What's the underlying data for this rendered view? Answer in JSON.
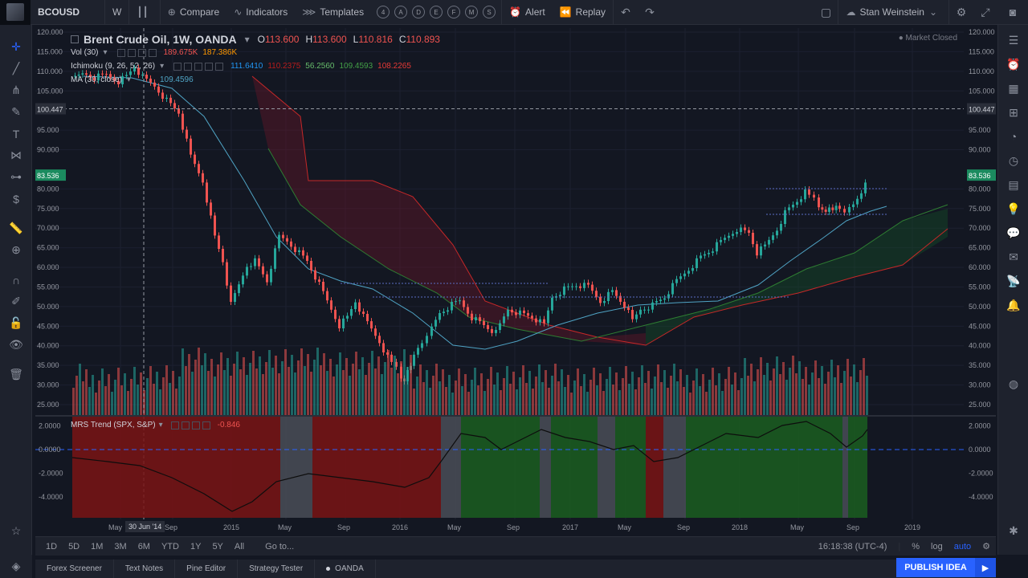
{
  "topbar": {
    "symbol": "BCOUSD",
    "interval": "W",
    "compare": "Compare",
    "indicators": "Indicators",
    "templates": "Templates",
    "alert": "Alert",
    "replay": "Replay",
    "user": "Stan Weinstein",
    "layout_keys": [
      "4",
      "A",
      "D",
      "E",
      "F",
      "M",
      "S"
    ]
  },
  "legend": {
    "title": "Brent Crude Oil, 1W, OANDA",
    "o_lab": "O",
    "o": "113.600",
    "h_lab": "H",
    "h": "113.600",
    "l_lab": "L",
    "l": "110.816",
    "c_lab": "C",
    "c": "110.893",
    "vol_label": "Vol (30)",
    "vol_1": "189.675K",
    "vol_2": "187.386K",
    "ichimoku_label": "Ichimoku (9, 26, 52, 26)",
    "ichi_1": "111.6410",
    "ichi_2": "110.2375",
    "ichi_3": "56.2560",
    "ichi_4": "109.4593",
    "ichi_5": "108.2265",
    "ma_label": "MA (30, close)",
    "ma_val": "109.4596",
    "market_status": "Market Closed",
    "mrs_label": "MRS Trend (SPX, S&P)",
    "mrs_val": "-0.846"
  },
  "price_axis": {
    "labels": [
      "120.000",
      "115.000",
      "110.000",
      "105.000",
      "100.447",
      "95.000",
      "90.000",
      "83.536",
      "80.000",
      "75.000",
      "70.000",
      "65.000",
      "60.000",
      "55.000",
      "50.000",
      "45.000",
      "40.000",
      "35.000",
      "30.000",
      "25.000"
    ],
    "current_price": "83.536",
    "crosshair_price": "100.447"
  },
  "mrs_axis": {
    "labels": [
      "2.0000",
      "0.0000",
      "-2.0000",
      "-4.0000"
    ]
  },
  "time_axis": {
    "labels": [
      "May",
      "Sep",
      "2015",
      "May",
      "Sep",
      "2016",
      "May",
      "Sep",
      "2017",
      "May",
      "Sep",
      "2018",
      "May",
      "Sep",
      "2019"
    ],
    "crosshair_date": "30 Jun '14"
  },
  "rangebar": {
    "ranges": [
      "1D",
      "5D",
      "1M",
      "3M",
      "6M",
      "YTD",
      "1Y",
      "5Y",
      "All"
    ],
    "goto": "Go to...",
    "clock": "16:18:38 (UTC-4)",
    "pct": "%",
    "log": "log",
    "auto": "auto"
  },
  "footer": {
    "tabs": [
      "Forex Screener",
      "Text Notes",
      "Pine Editor",
      "Strategy Tester",
      "OANDA"
    ],
    "publish": "PUBLISH IDEA"
  },
  "colors": {
    "up": "#26a69a",
    "down": "#ef5350",
    "background": "#131722",
    "accent": "#2962ff"
  },
  "icons": {
    "left_toolbar": [
      "crosshair-icon",
      "trend-line-icon",
      "pitchfork-icon",
      "brush-icon",
      "text-icon",
      "pattern-icon",
      "prediction-icon",
      "dollar-icon",
      "ruler-icon",
      "zoom-icon",
      "magnet-icon",
      "lock-drawing-icon",
      "lock-icon",
      "eye-icon",
      "trash-icon"
    ],
    "right_sidebar": [
      "watchlist-icon",
      "alarm-icon",
      "calendar-icon",
      "data-window-icon",
      "hotlist-icon",
      "clock-icon",
      "calculator-icon",
      "idea-icon",
      "chat-icon",
      "message-icon",
      "stream-icon",
      "bell-icon"
    ]
  }
}
